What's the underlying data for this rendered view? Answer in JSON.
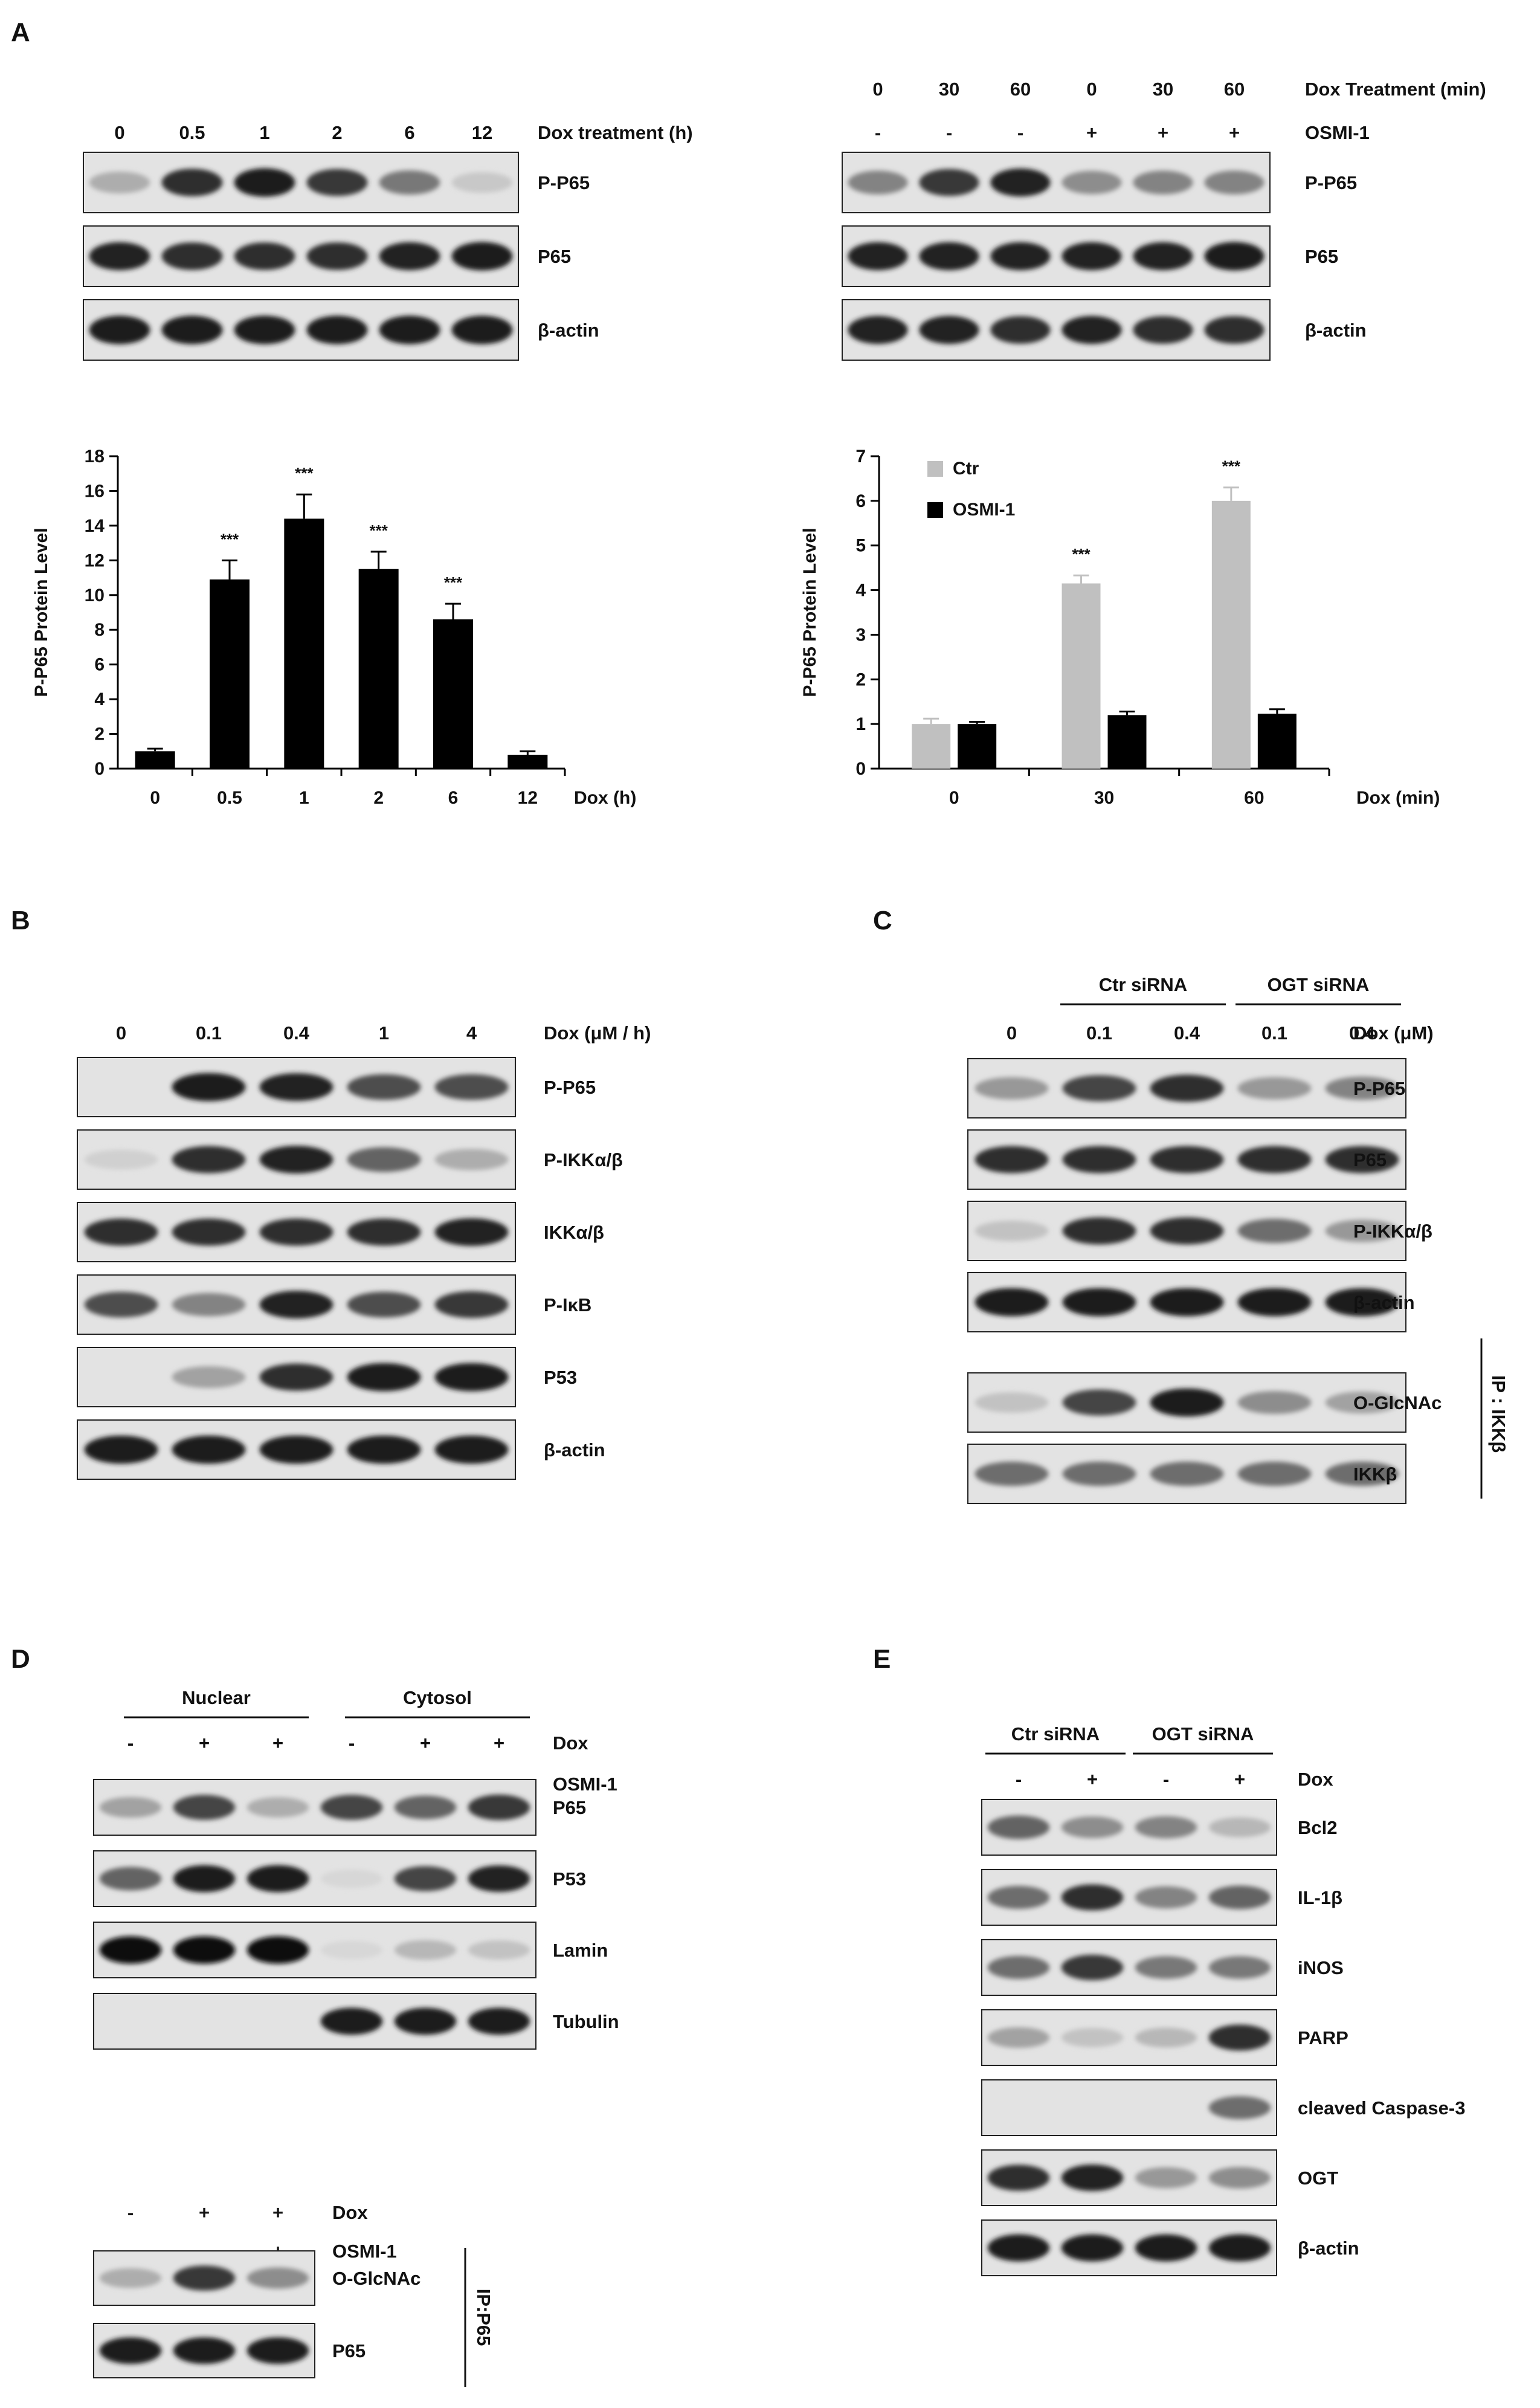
{
  "panels": {
    "A": {
      "label": "A",
      "left_blot": {
        "header_label": "Dox treatment (h)",
        "lanes": [
          "0",
          "0.5",
          "1",
          "2",
          "6",
          "12"
        ],
        "bands": [
          {
            "label": "P-P65",
            "intensities": [
              0.25,
              0.85,
              0.95,
              0.8,
              0.5,
              0.12
            ]
          },
          {
            "label": "P65",
            "intensities": [
              0.9,
              0.85,
              0.85,
              0.85,
              0.9,
              0.95
            ]
          },
          {
            "label": "β-actin",
            "intensities": [
              0.95,
              0.95,
              0.95,
              0.95,
              0.95,
              0.95
            ]
          }
        ]
      },
      "right_blot": {
        "header_rows": [
          {
            "label": "Dox Treatment (min)",
            "values": [
              "0",
              "30",
              "60",
              "0",
              "30",
              "60"
            ]
          },
          {
            "label": "OSMI-1",
            "values": [
              "-",
              "-",
              "-",
              "+",
              "+",
              "+"
            ]
          }
        ],
        "bands": [
          {
            "label": "P-P65",
            "intensities": [
              0.45,
              0.8,
              0.9,
              0.4,
              0.45,
              0.45
            ]
          },
          {
            "label": "P65",
            "intensities": [
              0.9,
              0.9,
              0.9,
              0.9,
              0.9,
              0.95
            ]
          },
          {
            "label": "β-actin",
            "intensities": [
              0.9,
              0.9,
              0.85,
              0.9,
              0.85,
              0.85
            ]
          }
        ]
      }
    },
    "B": {
      "label": "B",
      "header_label": "Dox (μM / h)",
      "lanes": [
        "0",
        "0.1",
        "0.4",
        "1",
        "4"
      ],
      "bands": [
        {
          "label": "P-P65",
          "intensities": [
            0.0,
            0.95,
            0.9,
            0.7,
            0.7
          ]
        },
        {
          "label": "P-IKKα/β",
          "intensities": [
            0.08,
            0.85,
            0.9,
            0.6,
            0.25
          ]
        },
        {
          "label": "IKKα/β",
          "intensities": [
            0.85,
            0.85,
            0.85,
            0.85,
            0.9
          ]
        },
        {
          "label": "P-IκB",
          "intensities": [
            0.7,
            0.45,
            0.9,
            0.7,
            0.8
          ]
        },
        {
          "label": "P53",
          "intensities": [
            0.0,
            0.3,
            0.85,
            0.95,
            0.95
          ]
        },
        {
          "label": "β-actin",
          "intensities": [
            0.95,
            0.95,
            0.95,
            0.95,
            0.95
          ]
        }
      ]
    },
    "C": {
      "label": "C",
      "groups": [
        "Ctr siRNA",
        "OGT siRNA"
      ],
      "header_label": "Dox (μM)",
      "lanes": [
        "0",
        "0.1",
        "0.4",
        "0.1",
        "0.4"
      ],
      "ip_label": "IP : IKKβ",
      "bands": [
        {
          "label": "P-P65",
          "intensities": [
            0.35,
            0.75,
            0.85,
            0.35,
            0.45
          ]
        },
        {
          "label": "P65",
          "intensities": [
            0.85,
            0.85,
            0.85,
            0.85,
            0.85
          ]
        },
        {
          "label": "P-IKKα/β",
          "intensities": [
            0.15,
            0.85,
            0.85,
            0.55,
            0.35
          ]
        },
        {
          "label": "β-actin",
          "intensities": [
            0.95,
            0.95,
            0.95,
            0.95,
            0.95
          ]
        },
        {
          "label": "O-GlcNAc",
          "intensities": [
            0.15,
            0.75,
            0.95,
            0.4,
            0.3
          ]
        },
        {
          "label": "IKKβ",
          "intensities": [
            0.55,
            0.55,
            0.55,
            0.55,
            0.55
          ]
        }
      ]
    },
    "D": {
      "label": "D",
      "groups": [
        "Nuclear",
        "Cytosol"
      ],
      "header_rows": [
        {
          "label": "Dox",
          "values": [
            "-",
            "+",
            "+",
            "-",
            "+",
            "+"
          ]
        },
        {
          "label": "OSMI-1",
          "values": [
            "-",
            "-",
            "+",
            "-",
            "-",
            "+"
          ]
        }
      ],
      "bands": [
        {
          "label": "P65",
          "intensities": [
            0.3,
            0.75,
            0.25,
            0.75,
            0.6,
            0.8
          ]
        },
        {
          "label": "P53",
          "intensities": [
            0.6,
            0.95,
            0.95,
            0.05,
            0.75,
            0.9
          ]
        },
        {
          "label": "Lamin",
          "intensities": [
            1.0,
            1.0,
            1.0,
            0.05,
            0.2,
            0.15
          ]
        },
        {
          "label": "Tubulin",
          "intensities": [
            0.0,
            0.0,
            0.0,
            0.95,
            0.95,
            0.95
          ]
        }
      ],
      "ip_blot": {
        "header_rows": [
          {
            "label": "Dox",
            "values": [
              "-",
              "+",
              "+"
            ]
          },
          {
            "label": "OSMI-1",
            "values": [
              "-",
              "-",
              "+"
            ]
          }
        ],
        "ip_label": "IP:P65",
        "bands": [
          {
            "label": "O-GlcNAc",
            "intensities": [
              0.25,
              0.8,
              0.4
            ]
          },
          {
            "label": "P65",
            "intensities": [
              0.95,
              0.95,
              0.95
            ]
          }
        ]
      }
    },
    "E": {
      "label": "E",
      "groups": [
        "Ctr siRNA",
        "OGT siRNA"
      ],
      "header_rows": [
        {
          "label": "Dox",
          "values": [
            "-",
            "+",
            "-",
            "+"
          ]
        }
      ],
      "bands": [
        {
          "label": "Bcl2",
          "intensities": [
            0.6,
            0.4,
            0.45,
            0.2
          ]
        },
        {
          "label": "IL-1β",
          "intensities": [
            0.55,
            0.85,
            0.45,
            0.6
          ]
        },
        {
          "label": "iNOS",
          "intensities": [
            0.55,
            0.8,
            0.5,
            0.5
          ]
        },
        {
          "label": "PARP",
          "intensities": [
            0.3,
            0.15,
            0.2,
            0.85
          ]
        },
        {
          "label": "cleaved Caspase-3",
          "intensities": [
            0.0,
            0.0,
            0.0,
            0.55
          ]
        },
        {
          "label": "OGT",
          "intensities": [
            0.85,
            0.9,
            0.35,
            0.4
          ]
        },
        {
          "label": "β-actin",
          "intensities": [
            0.95,
            0.95,
            0.95,
            0.95
          ]
        }
      ]
    }
  },
  "chart_data": [
    {
      "type": "bar",
      "categories": [
        "0",
        "0.5",
        "1",
        "2",
        "6",
        "12"
      ],
      "series": [
        {
          "values": [
            1.0,
            10.9,
            14.4,
            11.5,
            8.6,
            0.8
          ],
          "errors": [
            0.15,
            1.1,
            1.4,
            1.0,
            0.9,
            0.2
          ],
          "color": "#000000"
        }
      ],
      "annotations": [
        "",
        "***",
        "***",
        "***",
        "***",
        ""
      ],
      "title": "",
      "xlabel": "Dox (h)",
      "ylabel": "P-P65 Protein Level",
      "ylim": [
        0,
        18
      ],
      "yticks": [
        "0",
        "2",
        "4",
        "6",
        "8",
        "10",
        "12",
        "14",
        "16",
        "18"
      ],
      "grid": false
    },
    {
      "type": "bar",
      "categories": [
        "0",
        "30",
        "60"
      ],
      "series": [
        {
          "name": "Ctr",
          "values": [
            1.0,
            4.15,
            6.0
          ],
          "errors": [
            0.12,
            0.18,
            0.3
          ],
          "color": "#c0c0c0"
        },
        {
          "name": "OSMI-1",
          "values": [
            1.0,
            1.2,
            1.23
          ],
          "errors": [
            0.05,
            0.08,
            0.1
          ],
          "color": "#000000"
        }
      ],
      "annotations": [
        "",
        "***",
        "***"
      ],
      "title": "",
      "xlabel": "Dox (min)",
      "ylabel": "P-P65 Protein Level",
      "ylim": [
        0,
        7
      ],
      "yticks": [
        "0",
        "1",
        "2",
        "3",
        "4",
        "5",
        "6",
        "7"
      ],
      "legend": "top-left",
      "grid": false
    }
  ]
}
